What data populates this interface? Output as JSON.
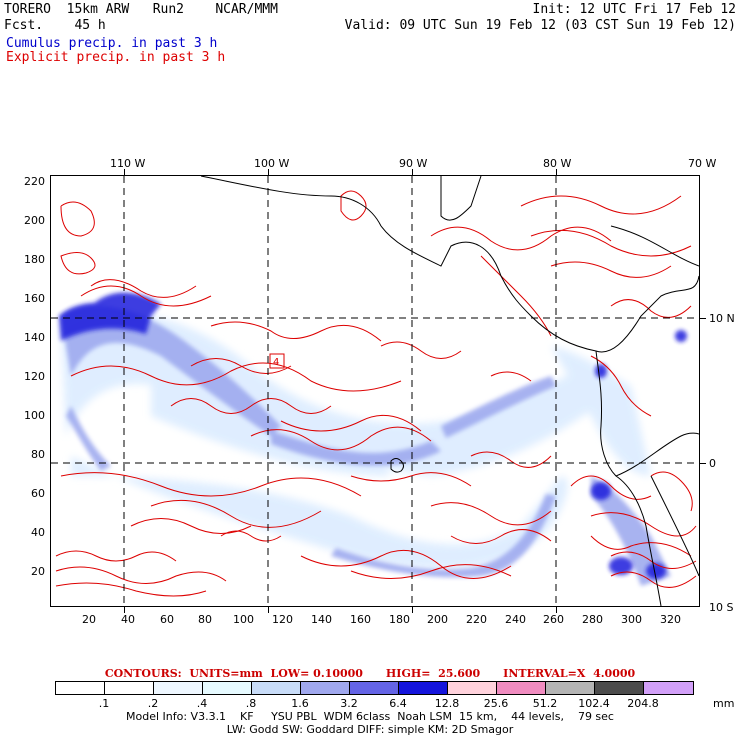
{
  "header": {
    "model": "TORERO  15km ARW   Run2    NCAR/MMM",
    "forecast": "Fcst.    45 h",
    "init": "Init: 12 UTC Fri 17 Feb 12",
    "valid": "Valid: 09 UTC Sun 19 Feb 12 (03 CST Sun 19 Feb 12)",
    "cumulus_label": "Cumulus precip. in past 3 h",
    "explicit_label": "Explicit precip. in past 3 h"
  },
  "map": {
    "x_ticks": [
      "20",
      "40",
      "60",
      "80",
      "100",
      "120",
      "140",
      "160",
      "180",
      "200",
      "220",
      "240",
      "260",
      "280",
      "300",
      "320"
    ],
    "y_ticks": [
      "220",
      "200",
      "180",
      "160",
      "140",
      "120",
      "100",
      "80",
      "60",
      "40",
      "20"
    ],
    "lon_labels": [
      "110 W",
      "100 W",
      "90 W",
      "80 W",
      "70 W"
    ],
    "lat_labels": [
      "10 N",
      "0",
      "10 S"
    ],
    "box_marker": "4",
    "x_range": [
      0,
      334
    ],
    "y_range": [
      0,
      224
    ]
  },
  "legend": {
    "contours": "CONTOURS:  UNITS=mm  LOW= 0.10000      HIGH=  25.600      INTERVAL=X  4.0000",
    "colorbar_labels": [
      ".1",
      ".2",
      ".4",
      ".8",
      "1.6",
      "3.2",
      "6.4",
      "12.8",
      "25.6",
      "51.2",
      "102.4",
      "204.8"
    ],
    "colorbar_colors": [
      "#ffffff",
      "#ffffff",
      "#eef7ff",
      "#e6faff",
      "#c8dcf8",
      "#a0a8ee",
      "#6464e6",
      "#1414dc",
      "#ffd2dc",
      "#f08cc0",
      "#b4b4b4",
      "#4c4c4c",
      "#d2a0f8"
    ],
    "units": "mm",
    "colors": {
      "cumulus": "#0000cc",
      "explicit": "#dd0000"
    }
  },
  "footer": {
    "line1": "Model Info: V3.3.1    KF     YSU PBL  WDM 6class  Noah LSM  15 km,    44 levels,    79 sec",
    "line2": "LW: Godd SW: Goddard DIFF: simple KM: 2D Smagor"
  }
}
